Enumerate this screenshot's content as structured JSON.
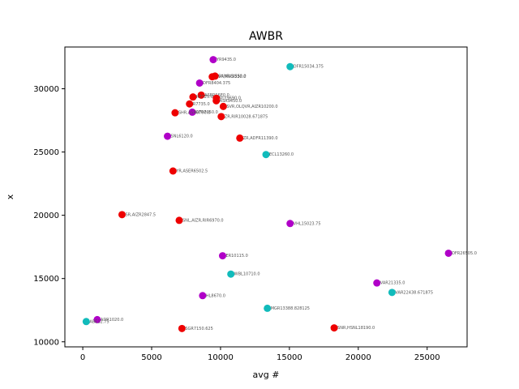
{
  "chart_data": {
    "type": "scatter",
    "title": "AWBR",
    "xlabel": "avg #",
    "ylabel": "x",
    "xlim": [
      -1300,
      27900
    ],
    "ylim": [
      9600,
      33300
    ],
    "xticks": [
      0,
      5000,
      10000,
      15000,
      20000,
      25000
    ],
    "xtick_labels": [
      "0",
      "5000",
      "10000",
      "15000",
      "20000",
      "25000"
    ],
    "yticks": [
      10000,
      15000,
      20000,
      25000,
      30000
    ],
    "ytick_labels": [
      "10000",
      "15000",
      "20000",
      "25000",
      "30000"
    ],
    "grid": false,
    "colors": {
      "red": "#ee0000",
      "magenta": "#b000c8",
      "teal": "#11bbbb"
    },
    "points": [
      {
        "x": 9470,
        "y": 32300,
        "color": "magenta",
        "label": "YR9435.0"
      },
      {
        "x": 15050,
        "y": 31750,
        "color": "teal",
        "label": "DFR15034.375"
      },
      {
        "x": 9400,
        "y": 30950,
        "color": "red",
        "label": "SVR,RIR9330.0"
      },
      {
        "x": 9600,
        "y": 31000,
        "color": "red",
        "label": "SANR,SISS0.0"
      },
      {
        "x": 8480,
        "y": 30450,
        "color": "magenta",
        "label": "DFR8404.375"
      },
      {
        "x": 8600,
        "y": 29500,
        "color": "red",
        "label": "ASERS6E0.0"
      },
      {
        "x": 8000,
        "y": 29350,
        "color": "red",
        "label": "R7725.0"
      },
      {
        "x": 9700,
        "y": 29250,
        "color": "red",
        "label": "VLY9690.0"
      },
      {
        "x": 9690,
        "y": 29050,
        "color": "red",
        "label": "ASR9450.0"
      },
      {
        "x": 7750,
        "y": 28800,
        "color": "red",
        "label": "R7735.0"
      },
      {
        "x": 10200,
        "y": 28600,
        "color": "red",
        "label": "SVR,OLQVR,AIZR10200.0"
      },
      {
        "x": 7950,
        "y": 28150,
        "color": "magenta",
        "label": "DFR7950.0"
      },
      {
        "x": 6700,
        "y": 28100,
        "color": "red",
        "label": "SHR,ASR6700.0"
      },
      {
        "x": 10050,
        "y": 27800,
        "color": "red",
        "label": "ZR,RIR10028.671875"
      },
      {
        "x": 6150,
        "y": 26250,
        "color": "magenta",
        "label": "SNL6120.0"
      },
      {
        "x": 11400,
        "y": 26100,
        "color": "red",
        "label": "ZR,ADFR11390.0"
      },
      {
        "x": 13300,
        "y": 24800,
        "color": "teal",
        "label": "ECL13260.0"
      },
      {
        "x": 6550,
        "y": 23500,
        "color": "red",
        "label": "YR,ASER6502.5"
      },
      {
        "x": 2850,
        "y": 20050,
        "color": "red",
        "label": "SR,AIZR2847.5"
      },
      {
        "x": 7000,
        "y": 19600,
        "color": "red",
        "label": "SNL,AIZR,RIR6970.0"
      },
      {
        "x": 15050,
        "y": 19350,
        "color": "magenta",
        "label": "VHL15023.75"
      },
      {
        "x": 26550,
        "y": 17000,
        "color": "magenta",
        "label": "DFR26505.0"
      },
      {
        "x": 10150,
        "y": 16800,
        "color": "magenta",
        "label": "ER10115.0"
      },
      {
        "x": 10750,
        "y": 15350,
        "color": "teal",
        "label": "WBL10710.0"
      },
      {
        "x": 21350,
        "y": 14650,
        "color": "magenta",
        "label": "VAR21335.0"
      },
      {
        "x": 22450,
        "y": 13900,
        "color": "teal",
        "label": "VAR22438.671875"
      },
      {
        "x": 8700,
        "y": 13650,
        "color": "magenta",
        "label": "HL8670.0"
      },
      {
        "x": 13400,
        "y": 12650,
        "color": "teal",
        "label": "MGR13388.828125"
      },
      {
        "x": 1050,
        "y": 11750,
        "color": "magenta",
        "label": "ADR1020.0"
      },
      {
        "x": 250,
        "y": 11600,
        "color": "teal",
        "label": "ABE12.75"
      },
      {
        "x": 7200,
        "y": 11050,
        "color": "red",
        "label": "SGR7150.625"
      },
      {
        "x": 18250,
        "y": 11100,
        "color": "red",
        "label": "SNR,HSNL18190.0"
      }
    ]
  }
}
